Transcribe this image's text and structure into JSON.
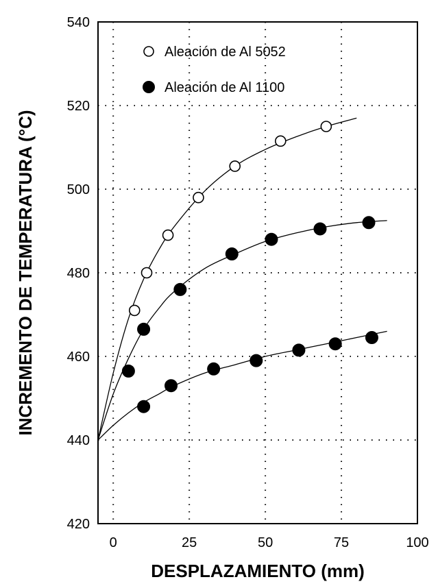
{
  "chart_data": {
    "type": "scatter",
    "title": "",
    "xlabel": "DESPLAZAMIENTO  (mm)",
    "ylabel": "INCREMENTO DE TEMPERATURA  (°C)",
    "xlim": [
      -5,
      100
    ],
    "ylim": [
      420,
      540
    ],
    "xticks": [
      0,
      25,
      50,
      75,
      100
    ],
    "yticks": [
      420,
      440,
      460,
      480,
      500,
      520,
      540
    ],
    "grid": true,
    "legend_position": "top-left",
    "series": [
      {
        "name": "Aleación de Al 5052",
        "marker": "open-circle",
        "x": [
          7,
          11,
          18,
          28,
          40,
          55,
          70
        ],
        "y": [
          471,
          480,
          489,
          498,
          505.5,
          511.5,
          515
        ],
        "fit": {
          "x": [
            -5,
            0,
            5,
            10,
            15,
            20,
            30,
            40,
            50,
            60,
            70,
            80
          ],
          "y": [
            440,
            456,
            469,
            478.5,
            485.5,
            491,
            499.5,
            505.5,
            509.5,
            512.5,
            515,
            517
          ]
        }
      },
      {
        "name": "Aleación de Al 1100",
        "marker": "filled-circle",
        "x": [
          5,
          10,
          22,
          39,
          52,
          68,
          84
        ],
        "y": [
          456.5,
          466.5,
          476,
          484.5,
          488,
          490.5,
          492
        ],
        "fit": {
          "x": [
            -5,
            0,
            5,
            10,
            15,
            20,
            30,
            40,
            50,
            60,
            70,
            80,
            90
          ],
          "y": [
            440,
            451,
            459.5,
            466.5,
            471.5,
            475.5,
            481,
            484.5,
            487.5,
            489.5,
            491,
            492,
            492.5
          ]
        }
      },
      {
        "name": "",
        "marker": "filled-circle",
        "x": [
          10,
          19,
          33,
          47,
          61,
          73,
          85
        ],
        "y": [
          448,
          453,
          457,
          459,
          461.5,
          463,
          464.5
        ],
        "fit": {
          "x": [
            -5,
            0,
            5,
            10,
            15,
            20,
            30,
            40,
            50,
            60,
            70,
            80,
            90
          ],
          "y": [
            440,
            443.5,
            446.5,
            449,
            451,
            453,
            456,
            458,
            460,
            461.5,
            463,
            464.5,
            466
          ]
        }
      }
    ]
  }
}
